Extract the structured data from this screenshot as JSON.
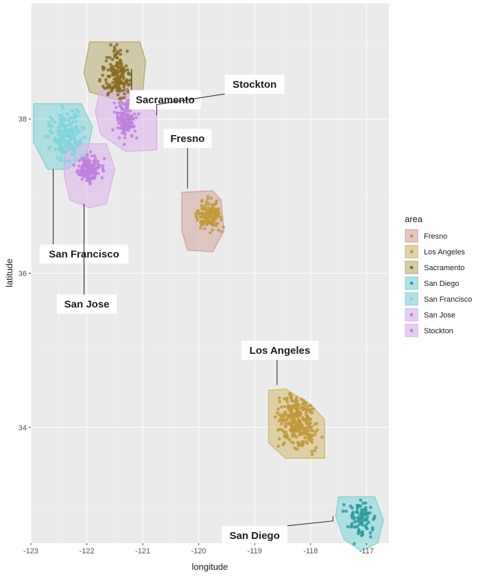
{
  "chart_data": {
    "type": "scatter",
    "title": "",
    "xlabel": "longitude",
    "ylabel": "latitude",
    "xlim": [
      -123,
      -116.6
    ],
    "ylim": [
      32.5,
      39.5
    ],
    "x_ticks": [
      -123,
      -122,
      -121,
      -120,
      -119,
      -118,
      -117
    ],
    "x_tick_labels": [
      "-123",
      "-122",
      "-121",
      "-120",
      "-119",
      "-118",
      "-117"
    ],
    "y_ticks": [
      34,
      36,
      38
    ],
    "y_tick_labels": [
      "34",
      "36",
      "38"
    ],
    "grid": true,
    "legend": {
      "title": "area",
      "placement": "right"
    },
    "series": [
      {
        "name": "Fresno",
        "color": "#d4a5a0",
        "point_color": "#c09a3a",
        "center": [
          -119.8,
          36.75
        ],
        "spread": [
          0.2,
          0.15
        ],
        "n": 140,
        "hull": [
          [
            -120.3,
            37.05
          ],
          [
            -119.75,
            37.07
          ],
          [
            -119.6,
            36.95
          ],
          [
            -119.55,
            36.55
          ],
          [
            -119.75,
            36.28
          ],
          [
            -120.2,
            36.3
          ],
          [
            -120.3,
            36.55
          ]
        ]
      },
      {
        "name": "Los Angeles",
        "color": "#d4b970",
        "point_color": "#c09a3a",
        "center": [
          -118.25,
          34.1
        ],
        "spread": [
          0.3,
          0.3
        ],
        "n": 280,
        "hull": [
          [
            -118.75,
            34.48
          ],
          [
            -118.45,
            34.5
          ],
          [
            -118.0,
            34.3
          ],
          [
            -117.75,
            34.1
          ],
          [
            -117.75,
            33.6
          ],
          [
            -118.45,
            33.6
          ],
          [
            -118.75,
            33.8
          ]
        ]
      },
      {
        "name": "Sacramento",
        "color": "#b8ad6e",
        "point_color": "#8a6a20",
        "center": [
          -121.45,
          38.55
        ],
        "spread": [
          0.2,
          0.3
        ],
        "n": 160,
        "hull": [
          [
            -121.95,
            39.0
          ],
          [
            -121.05,
            39.0
          ],
          [
            -120.95,
            38.75
          ],
          [
            -121.0,
            38.35
          ],
          [
            -121.45,
            38.25
          ],
          [
            -121.95,
            38.35
          ],
          [
            -122.05,
            38.6
          ]
        ]
      },
      {
        "name": "San Diego",
        "color": "#7ed6d9",
        "point_color": "#2a9aa0",
        "center": [
          -117.1,
          32.8
        ],
        "spread": [
          0.2,
          0.25
        ],
        "n": 90,
        "hull": [
          [
            -117.5,
            33.1
          ],
          [
            -116.85,
            33.1
          ],
          [
            -116.7,
            32.8
          ],
          [
            -116.8,
            32.5
          ],
          [
            -117.1,
            32.4
          ],
          [
            -117.4,
            32.55
          ],
          [
            -117.55,
            32.85
          ]
        ]
      },
      {
        "name": "San Francisco",
        "color": "#7ed6d9",
        "point_color": "#7ed6d9",
        "center": [
          -122.35,
          37.8
        ],
        "spread": [
          0.25,
          0.3
        ],
        "n": 200,
        "hull": [
          [
            -122.95,
            38.2
          ],
          [
            -122.1,
            38.2
          ],
          [
            -121.9,
            37.9
          ],
          [
            -122.0,
            37.55
          ],
          [
            -122.35,
            37.35
          ],
          [
            -122.7,
            37.35
          ],
          [
            -122.95,
            37.7
          ]
        ]
      },
      {
        "name": "San Jose",
        "color": "#dcb3eb",
        "point_color": "#c080de",
        "center": [
          -121.95,
          37.35
        ],
        "spread": [
          0.18,
          0.15
        ],
        "n": 150,
        "hull": [
          [
            -122.4,
            37.68
          ],
          [
            -121.65,
            37.68
          ],
          [
            -121.5,
            37.35
          ],
          [
            -121.65,
            36.9
          ],
          [
            -121.95,
            36.85
          ],
          [
            -122.3,
            36.95
          ],
          [
            -122.4,
            37.25
          ]
        ]
      },
      {
        "name": "Stockton",
        "color": "#dcb3eb",
        "point_color": "#c080de",
        "center": [
          -121.3,
          38.0
        ],
        "spread": [
          0.15,
          0.2
        ],
        "n": 130,
        "hull": [
          [
            -121.75,
            38.4
          ],
          [
            -121.05,
            38.4
          ],
          [
            -120.75,
            38.05
          ],
          [
            -120.75,
            37.6
          ],
          [
            -121.3,
            37.58
          ],
          [
            -121.75,
            37.8
          ],
          [
            -121.85,
            38.1
          ]
        ]
      }
    ],
    "callouts": [
      {
        "name": "Sacramento",
        "label_at": [
          -120.6,
          38.25
        ],
        "anchor": [
          -121.2,
          38.65
        ]
      },
      {
        "name": "Stockton",
        "label_at": [
          -119.0,
          38.45
        ],
        "anchor": [
          -120.75,
          38.05
        ]
      },
      {
        "name": "Fresno",
        "label_at": [
          -120.2,
          37.75
        ],
        "anchor": [
          -120.2,
          37.1
        ]
      },
      {
        "name": "San Francisco",
        "label_at": [
          -122.05,
          36.25
        ],
        "anchor": [
          -122.6,
          37.35
        ]
      },
      {
        "name": "San Jose",
        "label_at": [
          -122.0,
          35.6
        ],
        "anchor": [
          -122.05,
          36.9
        ]
      },
      {
        "name": "Los Angeles",
        "label_at": [
          -118.55,
          35.0
        ],
        "anchor": [
          -118.6,
          34.55
        ]
      },
      {
        "name": "San Diego",
        "label_at": [
          -119.0,
          32.6
        ],
        "anchor": [
          -117.6,
          32.85
        ]
      }
    ]
  }
}
